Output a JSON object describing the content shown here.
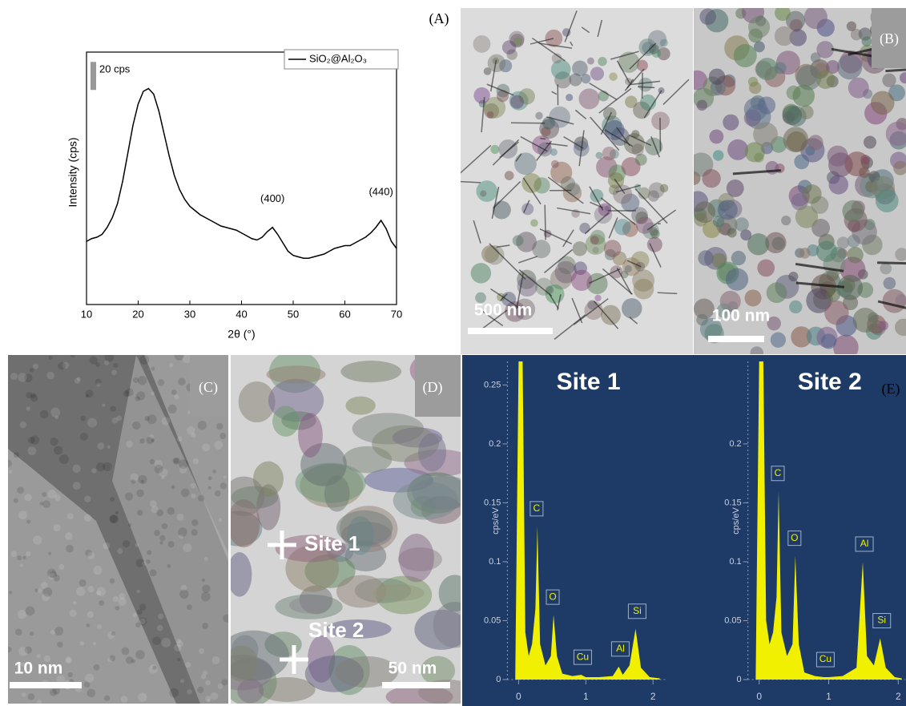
{
  "panel_labels": [
    "(A)",
    "(B)",
    "(C)",
    "(D)",
    "(E)"
  ],
  "scale_bars": [
    "500 nm",
    "100 nm",
    "10 nm",
    "50 nm"
  ],
  "site_labels": [
    "Site 1",
    "Site 2"
  ],
  "chart_data": [
    {
      "type": "line",
      "xlabel": "2θ (°)",
      "ylabel": "Intensity (cps)",
      "legend": "SiO₂@Al₂O₃",
      "color": "#000000",
      "scale_bar": {
        "value": 20,
        "label": "20 cps"
      },
      "annotations": [
        {
          "text": "(400)",
          "x": 46
        },
        {
          "text": "(440)",
          "x": 67
        }
      ],
      "x": [
        10,
        11,
        12,
        13,
        14,
        15,
        16,
        17,
        18,
        19,
        20,
        21,
        22,
        23,
        24,
        25,
        26,
        27,
        28,
        29,
        30,
        31,
        32,
        33,
        34,
        35,
        36,
        37,
        38,
        39,
        40,
        41,
        42,
        43,
        44,
        45,
        46,
        47,
        48,
        49,
        50,
        51,
        52,
        53,
        54,
        55,
        56,
        57,
        58,
        59,
        60,
        61,
        62,
        63,
        64,
        65,
        66,
        67,
        68,
        69,
        70
      ],
      "values": [
        45,
        47,
        48,
        50,
        55,
        62,
        72,
        88,
        108,
        128,
        143,
        152,
        154,
        150,
        138,
        122,
        106,
        92,
        82,
        75,
        70,
        67,
        64,
        62,
        60,
        58,
        56,
        55,
        54,
        53,
        51,
        49,
        47,
        46,
        48,
        52,
        55,
        50,
        44,
        38,
        35,
        34,
        33,
        33,
        34,
        35,
        36,
        38,
        40,
        41,
        42,
        42,
        44,
        46,
        48,
        51,
        55,
        60,
        54,
        45,
        40
      ],
      "xlim": [
        10,
        70
      ],
      "xticks": [
        10,
        20,
        30,
        40,
        50,
        60,
        70
      ],
      "ylim": [
        0,
        180
      ]
    },
    {
      "type": "spectrum",
      "title": "Site 1",
      "ylabel": "cps/eV",
      "color": "#f0f000",
      "x": [
        -0.05,
        0,
        0.03,
        0.06,
        0.1,
        0.15,
        0.2,
        0.25,
        0.28,
        0.32,
        0.4,
        0.48,
        0.52,
        0.57,
        0.65,
        0.8,
        0.93,
        1.0,
        1.2,
        1.4,
        1.49,
        1.55,
        1.65,
        1.74,
        1.82,
        1.95,
        2.1
      ],
      "values": [
        0,
        0.27,
        0.27,
        0.27,
        0.04,
        0.02,
        0.03,
        0.06,
        0.13,
        0.03,
        0.012,
        0.02,
        0.055,
        0.02,
        0.005,
        0.003,
        0.004,
        0.002,
        0.002,
        0.003,
        0.011,
        0.004,
        0.012,
        0.043,
        0.01,
        0.002,
        0.001
      ],
      "peaks": [
        {
          "label": "C",
          "x": 0.28
        },
        {
          "label": "O",
          "x": 0.52
        },
        {
          "label": "Cu",
          "x": 0.93
        },
        {
          "label": "Al",
          "x": 1.49
        },
        {
          "label": "Si",
          "x": 1.74
        }
      ],
      "xlim": [
        -0.1,
        2.2
      ],
      "xticks": [
        0,
        1,
        2
      ],
      "ylim": [
        0,
        0.27
      ],
      "yticks": [
        0,
        0.05,
        0.1,
        0.15,
        0.2,
        0.25
      ]
    },
    {
      "type": "spectrum",
      "title": "Site 2",
      "ylabel": "cps/eV",
      "color": "#f0f000",
      "x": [
        -0.05,
        0,
        0.03,
        0.06,
        0.1,
        0.15,
        0.2,
        0.25,
        0.28,
        0.32,
        0.4,
        0.48,
        0.52,
        0.57,
        0.65,
        0.8,
        0.93,
        1.0,
        1.2,
        1.4,
        1.49,
        1.55,
        1.65,
        1.74,
        1.82,
        1.95,
        2.05
      ],
      "values": [
        0,
        0.27,
        0.27,
        0.27,
        0.05,
        0.03,
        0.04,
        0.07,
        0.16,
        0.04,
        0.02,
        0.03,
        0.105,
        0.03,
        0.006,
        0.003,
        0.002,
        0.002,
        0.003,
        0.01,
        0.1,
        0.02,
        0.012,
        0.035,
        0.01,
        0.002,
        0.001
      ],
      "peaks": [
        {
          "label": "C",
          "x": 0.28
        },
        {
          "label": "O",
          "x": 0.52
        },
        {
          "label": "Cu",
          "x": 0.93
        },
        {
          "label": "Al",
          "x": 1.49
        },
        {
          "label": "Si",
          "x": 1.74
        }
      ],
      "xlim": [
        -0.1,
        2.1
      ],
      "xticks": [
        0,
        1,
        2
      ],
      "ylim": [
        0,
        0.27
      ],
      "yticks": [
        0,
        0.05,
        0.1,
        0.15,
        0.2
      ]
    }
  ]
}
